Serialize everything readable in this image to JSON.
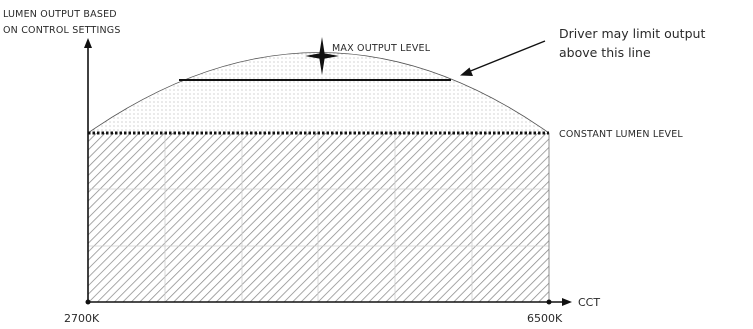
{
  "y_axis_label": [
    "LUMEN OUTPUT BASED",
    "ON CONTROL SETTINGS"
  ],
  "x_axis_label": "CCT",
  "x_start_label": "2700K",
  "x_end_label": "6500K",
  "max_output_label": "MAX OUTPUT LEVEL",
  "constant_lumen_label": "CONSTANT LUMEN LEVEL",
  "driver_note": [
    "Driver may limit output",
    "above this line"
  ],
  "colors": {
    "ink": "#1a1a1a",
    "hatch": "#8a8a8a",
    "dots": "#9a9a9a",
    "grid": "#cfcfcf"
  },
  "icons": {
    "max_point": "four-point-star-icon"
  }
}
